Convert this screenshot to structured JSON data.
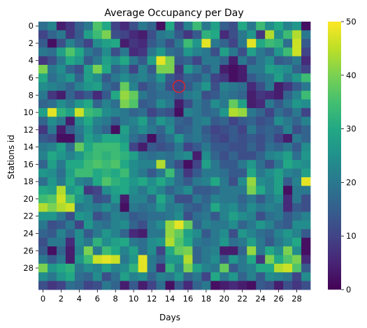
{
  "chart_data": {
    "type": "heatmap",
    "title": "Average Occupancy per Day",
    "xlabel": "Days",
    "ylabel": "Stations id",
    "x_tick_labels": [
      "0",
      "2",
      "4",
      "6",
      "8",
      "10",
      "12",
      "14",
      "16",
      "18",
      "20",
      "22",
      "24",
      "26",
      "28"
    ],
    "y_tick_labels": [
      "0",
      "2",
      "4",
      "6",
      "8",
      "10",
      "12",
      "14",
      "16",
      "18",
      "20",
      "22",
      "24",
      "26",
      "28"
    ],
    "colorbar": {
      "colormap": "viridis",
      "min": 0,
      "max": 50,
      "ticks": [
        "0",
        "10",
        "20",
        "30",
        "40",
        "50"
      ]
    },
    "highlight": {
      "shape": "circle",
      "color": "#d62728",
      "day": 15,
      "station": 7
    },
    "values": [
      [
        18,
        22,
        4,
        8,
        15,
        20,
        36,
        30,
        10,
        6,
        12,
        20,
        16,
        2,
        30,
        10,
        22,
        34,
        20,
        28,
        15,
        12,
        30,
        20,
        34,
        24,
        30,
        22,
        26,
        2
      ],
      [
        10,
        16,
        20,
        8,
        14,
        28,
        34,
        40,
        12,
        10,
        6,
        4,
        12,
        20,
        22,
        14,
        8,
        14,
        32,
        30,
        6,
        12,
        20,
        26,
        8,
        44,
        24,
        34,
        44,
        20
      ],
      [
        14,
        2,
        12,
        22,
        16,
        10,
        24,
        28,
        30,
        4,
        8,
        6,
        14,
        18,
        12,
        20,
        34,
        26,
        48,
        20,
        16,
        10,
        20,
        48,
        30,
        34,
        32,
        18,
        46,
        14
      ],
      [
        20,
        18,
        28,
        36,
        30,
        20,
        16,
        24,
        12,
        20,
        6,
        8,
        20,
        26,
        18,
        16,
        26,
        22,
        20,
        12,
        28,
        20,
        12,
        28,
        20,
        16,
        26,
        34,
        46,
        10
      ],
      [
        8,
        12,
        20,
        30,
        26,
        14,
        20,
        28,
        24,
        30,
        20,
        14,
        28,
        48,
        40,
        14,
        16,
        10,
        20,
        20,
        16,
        4,
        20,
        14,
        20,
        24,
        14,
        16,
        20,
        6
      ],
      [
        40,
        20,
        24,
        16,
        12,
        28,
        40,
        30,
        16,
        20,
        10,
        22,
        14,
        40,
        40,
        8,
        26,
        20,
        14,
        20,
        4,
        2,
        4,
        20,
        20,
        28,
        26,
        24,
        16,
        10
      ],
      [
        30,
        18,
        22,
        26,
        16,
        28,
        24,
        14,
        20,
        24,
        20,
        22,
        18,
        26,
        14,
        10,
        16,
        14,
        20,
        10,
        8,
        2,
        4,
        14,
        18,
        20,
        28,
        20,
        26,
        34
      ],
      [
        24,
        22,
        20,
        16,
        22,
        26,
        28,
        18,
        14,
        38,
        22,
        12,
        16,
        20,
        12,
        10,
        14,
        20,
        26,
        12,
        22,
        20,
        18,
        6,
        12,
        20,
        4,
        8,
        14,
        20
      ],
      [
        20,
        8,
        4,
        16,
        10,
        14,
        6,
        14,
        30,
        42,
        38,
        20,
        16,
        18,
        18,
        14,
        20,
        22,
        12,
        14,
        20,
        18,
        16,
        4,
        8,
        6,
        4,
        16,
        22,
        34
      ],
      [
        16,
        18,
        24,
        20,
        26,
        30,
        16,
        22,
        18,
        40,
        36,
        14,
        16,
        24,
        20,
        4,
        12,
        20,
        16,
        24,
        20,
        38,
        28,
        4,
        6,
        20,
        14,
        20,
        26,
        24
      ],
      [
        28,
        48,
        32,
        28,
        46,
        34,
        32,
        24,
        22,
        20,
        16,
        18,
        10,
        14,
        12,
        2,
        22,
        20,
        16,
        18,
        26,
        44,
        42,
        20,
        16,
        10,
        18,
        14,
        20,
        10
      ],
      [
        16,
        24,
        20,
        4,
        24,
        30,
        22,
        20,
        14,
        20,
        22,
        28,
        18,
        26,
        22,
        16,
        14,
        20,
        22,
        14,
        16,
        10,
        14,
        16,
        12,
        14,
        24,
        20,
        16,
        22
      ],
      [
        8,
        20,
        4,
        14,
        20,
        26,
        20,
        16,
        2,
        28,
        20,
        24,
        20,
        16,
        24,
        14,
        16,
        20,
        14,
        10,
        12,
        14,
        10,
        20,
        14,
        16,
        14,
        22,
        12,
        16
      ],
      [
        14,
        12,
        2,
        2,
        18,
        28,
        24,
        30,
        30,
        26,
        18,
        14,
        2,
        14,
        18,
        26,
        18,
        20,
        16,
        12,
        10,
        14,
        12,
        14,
        12,
        16,
        10,
        4,
        20,
        16
      ],
      [
        20,
        22,
        28,
        18,
        38,
        30,
        34,
        34,
        34,
        30,
        10,
        4,
        14,
        12,
        14,
        20,
        10,
        14,
        20,
        14,
        14,
        12,
        12,
        16,
        12,
        18,
        16,
        20,
        14,
        24
      ],
      [
        22,
        30,
        26,
        22,
        26,
        32,
        34,
        32,
        34,
        32,
        28,
        20,
        18,
        20,
        18,
        22,
        24,
        4,
        24,
        16,
        12,
        16,
        12,
        12,
        16,
        22,
        24,
        28,
        18,
        26
      ],
      [
        16,
        28,
        20,
        30,
        30,
        34,
        36,
        34,
        36,
        30,
        24,
        22,
        22,
        44,
        18,
        12,
        2,
        10,
        28,
        20,
        14,
        14,
        20,
        26,
        18,
        12,
        20,
        30,
        26,
        24
      ],
      [
        26,
        24,
        18,
        28,
        34,
        34,
        30,
        32,
        30,
        34,
        24,
        20,
        14,
        20,
        34,
        18,
        8,
        14,
        20,
        20,
        18,
        14,
        14,
        30,
        20,
        24,
        28,
        22,
        20,
        28
      ],
      [
        18,
        26,
        20,
        30,
        22,
        20,
        30,
        36,
        32,
        30,
        26,
        30,
        24,
        30,
        24,
        18,
        14,
        20,
        22,
        30,
        20,
        12,
        24,
        42,
        24,
        22,
        28,
        14,
        22,
        48
      ],
      [
        30,
        28,
        44,
        26,
        30,
        8,
        10,
        24,
        28,
        30,
        24,
        20,
        26,
        22,
        16,
        20,
        24,
        14,
        14,
        16,
        20,
        20,
        20,
        40,
        30,
        22,
        28,
        2,
        20,
        20
      ],
      [
        34,
        36,
        46,
        36,
        26,
        22,
        12,
        14,
        26,
        4,
        22,
        22,
        16,
        30,
        22,
        12,
        12,
        20,
        16,
        22,
        20,
        20,
        16,
        20,
        14,
        20,
        24,
        6,
        20,
        12
      ],
      [
        44,
        40,
        44,
        46,
        20,
        22,
        20,
        24,
        20,
        2,
        20,
        18,
        20,
        26,
        20,
        22,
        16,
        14,
        18,
        30,
        22,
        24,
        18,
        24,
        20,
        22,
        20,
        6,
        14,
        12
      ],
      [
        26,
        26,
        20,
        12,
        26,
        24,
        12,
        16,
        22,
        20,
        14,
        16,
        18,
        18,
        20,
        24,
        12,
        18,
        20,
        14,
        22,
        28,
        24,
        22,
        12,
        18,
        20,
        14,
        18,
        22
      ],
      [
        20,
        12,
        14,
        20,
        10,
        26,
        20,
        18,
        22,
        24,
        16,
        12,
        20,
        24,
        42,
        48,
        38,
        16,
        22,
        20,
        20,
        24,
        16,
        20,
        26,
        22,
        16,
        14,
        24,
        24
      ],
      [
        16,
        14,
        22,
        16,
        24,
        14,
        20,
        26,
        22,
        16,
        6,
        4,
        20,
        20,
        42,
        38,
        28,
        24,
        14,
        20,
        24,
        12,
        26,
        22,
        18,
        16,
        22,
        26,
        22,
        14
      ],
      [
        12,
        20,
        20,
        6,
        24,
        20,
        32,
        24,
        28,
        30,
        20,
        18,
        24,
        26,
        44,
        36,
        30,
        20,
        18,
        20,
        26,
        18,
        20,
        28,
        20,
        14,
        20,
        24,
        30,
        2
      ],
      [
        14,
        2,
        16,
        4,
        22,
        40,
        20,
        34,
        30,
        22,
        28,
        18,
        24,
        10,
        30,
        38,
        40,
        16,
        20,
        22,
        4,
        4,
        16,
        42,
        20,
        30,
        24,
        40,
        24,
        2
      ],
      [
        20,
        14,
        20,
        4,
        26,
        34,
        46,
        48,
        46,
        20,
        26,
        48,
        20,
        16,
        26,
        26,
        44,
        16,
        20,
        24,
        14,
        26,
        20,
        30,
        8,
        40,
        30,
        36,
        40,
        6
      ],
      [
        40,
        26,
        30,
        32,
        20,
        24,
        22,
        28,
        22,
        24,
        32,
        48,
        20,
        6,
        32,
        22,
        40,
        28,
        22,
        20,
        38,
        14,
        20,
        22,
        30,
        30,
        44,
        46,
        36,
        14
      ],
      [
        24,
        20,
        26,
        30,
        18,
        16,
        24,
        12,
        18,
        28,
        22,
        24,
        16,
        22,
        20,
        26,
        16,
        20,
        10,
        30,
        20,
        26,
        16,
        22,
        14,
        24,
        22,
        20,
        10,
        24
      ],
      [
        12,
        8,
        10,
        18,
        16,
        10,
        12,
        20,
        16,
        4,
        14,
        4,
        10,
        18,
        2,
        14,
        6,
        16,
        20,
        2,
        4,
        6,
        4,
        2,
        14,
        12,
        4,
        12,
        8,
        12
      ]
    ]
  }
}
